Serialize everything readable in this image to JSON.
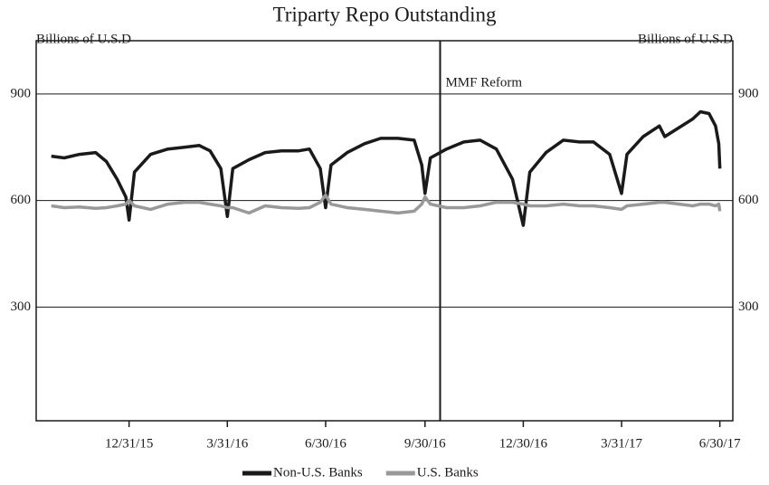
{
  "chart_data": {
    "type": "line",
    "title": "Triparty Repo Outstanding",
    "y_label": "Billions of U.S.D",
    "y2_label": "Billions of U.S.D",
    "x": [
      "2015-10-20",
      "2015-11-01",
      "2015-11-15",
      "2015-11-30",
      "2015-12-10",
      "2015-12-20",
      "2015-12-28",
      "2015-12-31",
      "2016-01-05",
      "2016-01-20",
      "2016-02-05",
      "2016-02-20",
      "2016-03-05",
      "2016-03-15",
      "2016-03-25",
      "2016-03-31",
      "2016-04-05",
      "2016-04-20",
      "2016-05-05",
      "2016-05-20",
      "2016-06-05",
      "2016-06-15",
      "2016-06-25",
      "2016-06-30",
      "2016-07-05",
      "2016-07-20",
      "2016-08-05",
      "2016-08-20",
      "2016-09-05",
      "2016-09-20",
      "2016-09-27",
      "2016-09-30",
      "2016-10-05",
      "2016-10-20",
      "2016-11-05",
      "2016-11-20",
      "2016-12-05",
      "2016-12-20",
      "2016-12-30",
      "2017-01-05",
      "2017-01-20",
      "2017-02-05",
      "2017-02-20",
      "2017-03-05",
      "2017-03-20",
      "2017-03-31",
      "2017-04-05",
      "2017-04-20",
      "2017-05-05",
      "2017-05-10",
      "2017-06-05",
      "2017-06-12",
      "2017-06-20",
      "2017-06-26",
      "2017-06-29",
      "2017-06-30"
    ],
    "series": [
      {
        "name": "Non-U.S. Banks",
        "color": "#1a1a1a",
        "values": [
          725,
          720,
          730,
          735,
          710,
          660,
          610,
          545,
          680,
          730,
          745,
          750,
          755,
          740,
          690,
          555,
          690,
          715,
          735,
          740,
          740,
          745,
          690,
          580,
          700,
          735,
          760,
          775,
          775,
          770,
          700,
          620,
          720,
          745,
          765,
          770,
          745,
          660,
          530,
          680,
          735,
          770,
          765,
          765,
          730,
          620,
          730,
          780,
          810,
          780,
          830,
          850,
          845,
          810,
          760,
          690
        ]
      },
      {
        "name": "U.S. Banks",
        "color": "#999999",
        "values": [
          585,
          580,
          582,
          578,
          580,
          585,
          590,
          600,
          585,
          575,
          590,
          595,
          595,
          590,
          585,
          580,
          580,
          565,
          585,
          580,
          578,
          580,
          595,
          615,
          590,
          580,
          575,
          570,
          565,
          570,
          590,
          610,
          590,
          580,
          580,
          585,
          595,
          595,
          590,
          585,
          585,
          590,
          585,
          585,
          580,
          575,
          585,
          590,
          595,
          595,
          585,
          590,
          590,
          585,
          590,
          570
        ]
      }
    ],
    "xlim": [
      "2015-10-06",
      "2017-07-12"
    ],
    "xticks": [
      {
        "value": "2015-12-31",
        "label": "12/31/15"
      },
      {
        "value": "2016-03-31",
        "label": "3/31/16"
      },
      {
        "value": "2016-06-30",
        "label": "6/30/16"
      },
      {
        "value": "2016-09-30",
        "label": "9/30/16"
      },
      {
        "value": "2016-12-30",
        "label": "12/30/16"
      },
      {
        "value": "2017-03-31",
        "label": "3/31/17"
      },
      {
        "value": "2017-06-30",
        "label": "6/30/17"
      }
    ],
    "ylim": [
      -20,
      1050
    ],
    "yticks": [
      300,
      600,
      900
    ],
    "y2lim": [
      -20,
      1050
    ],
    "y2ticks": [
      300,
      600,
      900
    ],
    "grid": true,
    "legend": "bottom",
    "annotations": [
      {
        "text": "MMF Reform",
        "x": "2016-10-14"
      }
    ]
  }
}
